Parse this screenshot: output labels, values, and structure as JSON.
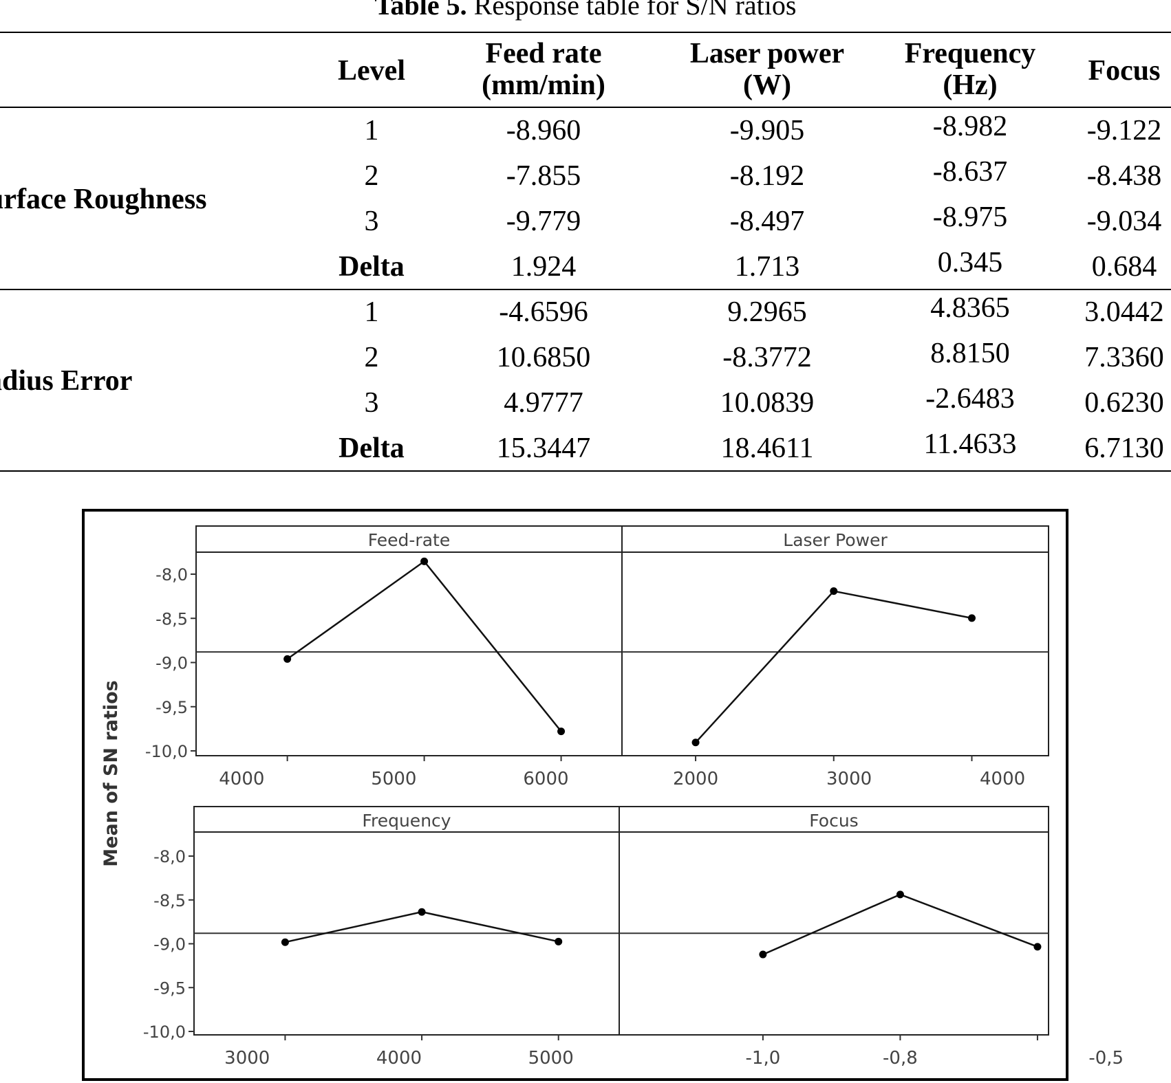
{
  "caption": {
    "label": "Table 5.",
    "text": " Response table for S/N ratios"
  },
  "table": {
    "headers": {
      "level": "Level",
      "feed_rate": [
        "Feed rate",
        "(mm/min)"
      ],
      "laser_power": [
        "Laser power",
        "(W)"
      ],
      "frequency": [
        "Frequency",
        "(Hz)"
      ],
      "focus": "Focus"
    },
    "groups": [
      {
        "name": "urface Roughness",
        "rows": [
          {
            "level": "1",
            "feed_rate": "-8.960",
            "laser_power": "-9.905",
            "frequency": "-8.982",
            "focus": "-9.122"
          },
          {
            "level": "2",
            "feed_rate": "-7.855",
            "laser_power": "-8.192",
            "frequency": "-8.637",
            "focus": "-8.438"
          },
          {
            "level": "3",
            "feed_rate": "-9.779",
            "laser_power": "-8.497",
            "frequency": "-8.975",
            "focus": "-9.034"
          },
          {
            "level": "Delta",
            "feed_rate": "1.924",
            "laser_power": "1.713",
            "frequency": "0.345",
            "focus": "0.684"
          }
        ]
      },
      {
        "name": "adius Error",
        "rows": [
          {
            "level": "1",
            "feed_rate": "-4.6596",
            "laser_power": "9.2965",
            "frequency": "4.8365",
            "focus": "3.0442"
          },
          {
            "level": "2",
            "feed_rate": "10.6850",
            "laser_power": "-8.3772",
            "frequency": "8.8150",
            "focus": "7.3360"
          },
          {
            "level": "3",
            "feed_rate": "4.9777",
            "laser_power": "10.0839",
            "frequency": "-2.6483",
            "focus": "0.6230"
          },
          {
            "level": "Delta",
            "feed_rate": "15.3447",
            "laser_power": "18.4611",
            "frequency": "11.4633",
            "focus": "6.7130"
          }
        ]
      }
    ]
  },
  "chart_data": {
    "type": "line",
    "ylabel": "Mean of SN ratios",
    "ylim": [
      -10.0,
      -7.7
    ],
    "yticks": [
      -8.0,
      -8.5,
      -9.0,
      -9.5,
      -10.0
    ],
    "ytick_labels": [
      "-8,0",
      "-8,5",
      "-9,0",
      "-9,5",
      "-10,0"
    ],
    "grand_mean": -8.88,
    "panels": [
      {
        "title": "Feed-rate",
        "x": [
          4300,
          5200,
          6100
        ],
        "y": [
          -8.96,
          -7.855,
          -9.779
        ],
        "xlim": [
          3700,
          6500
        ],
        "xticks": [
          4000,
          5000,
          6000
        ],
        "xtick_labels": [
          "4000",
          "5000",
          "6000"
        ]
      },
      {
        "title": "Laser Power",
        "x": [
          2000,
          2900,
          3800
        ],
        "y": [
          -9.905,
          -8.192,
          -8.497
        ],
        "xlim": [
          1520,
          4300
        ],
        "xticks": [
          2000,
          3000,
          4000
        ],
        "xtick_labels": [
          "2000",
          "3000",
          "4000"
        ]
      },
      {
        "title": "Frequency",
        "x": [
          3250,
          4150,
          5050
        ],
        "y": [
          -8.982,
          -8.637,
          -8.975
        ],
        "xlim": [
          2650,
          5450
        ],
        "xticks": [
          3000,
          4000,
          5000
        ],
        "xtick_labels": [
          "3000",
          "4000",
          "5000"
        ]
      },
      {
        "title": "Focus",
        "x": [
          -1.0,
          -0.8,
          -0.6
        ],
        "y": [
          -9.122,
          -8.438,
          -9.034
        ],
        "xlim": [
          -1.2094,
          -0.5839
        ],
        "xticks": [
          -1.0,
          -0.8,
          -0.5
        ],
        "xtick_labels": [
          "-1,0",
          "-0,8",
          "-0,5"
        ]
      }
    ]
  }
}
